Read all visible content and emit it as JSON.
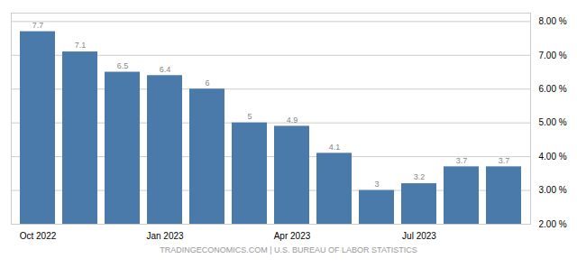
{
  "chart_data": {
    "type": "bar",
    "caption": "TRADINGECONOMICS.COM | U.S. BUREAU OF LABOR STATISTICS",
    "categories": [
      "Oct 2022",
      null,
      null,
      "Jan 2023",
      null,
      null,
      "Apr 2023",
      null,
      null,
      "Jul 2023",
      null,
      null
    ],
    "values": [
      7.7,
      7.1,
      6.5,
      6.4,
      6.0,
      5.0,
      4.9,
      4.1,
      3.0,
      3.2,
      3.7,
      3.7
    ],
    "color": "#4a7aaa",
    "ylim": [
      2.0,
      8.25
    ],
    "yticks": [
      {
        "value": 2.0,
        "label": "2.00 %"
      },
      {
        "value": 3.0,
        "label": "3.00 %"
      },
      {
        "value": 4.0,
        "label": "4.00 %"
      },
      {
        "value": 5.0,
        "label": "5.00 %"
      },
      {
        "value": 6.0,
        "label": "6.00 %"
      },
      {
        "value": 7.0,
        "label": "7.00 %"
      },
      {
        "value": 8.0,
        "label": "8.00 %"
      }
    ],
    "grid": true,
    "data_labels": true
  }
}
